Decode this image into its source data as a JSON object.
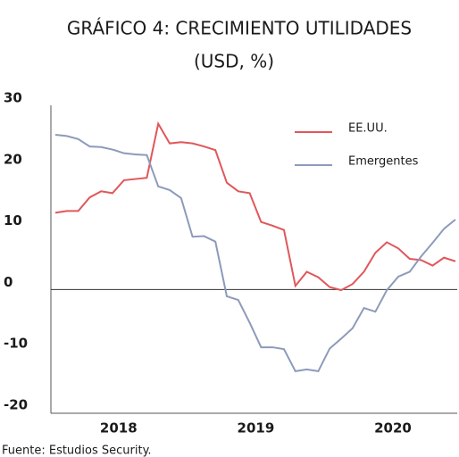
{
  "chart_data": {
    "type": "line",
    "title": "GRÁFICO 4: CRECIMIENTO UTILIDADES",
    "subtitle": "(USD, %)",
    "source": "Fuente: Estudios Security.",
    "categories": [
      null,
      null,
      null,
      null,
      null,
      null,
      "2018",
      null,
      null,
      null,
      null,
      null,
      null,
      null,
      null,
      null,
      null,
      null,
      "2019",
      null,
      null,
      null,
      null,
      null,
      null,
      null,
      null,
      null,
      null,
      null,
      "2020",
      null,
      null,
      null,
      null,
      null
    ],
    "series": [
      {
        "name": "EE.UU.",
        "color": "#e0575a",
        "values": [
          12.5,
          12.8,
          12.8,
          15,
          16,
          15.7,
          17.8,
          18,
          18.2,
          27,
          23.8,
          24,
          23.8,
          23.3,
          22.7,
          17.4,
          16,
          15.7,
          11,
          10.4,
          9.7,
          0.6,
          2.9,
          2,
          0.4,
          -0.1,
          0.9,
          2.9,
          6,
          7.7,
          6.7,
          5,
          4.8,
          3.9,
          5.2,
          4.6
        ]
      },
      {
        "name": "Emergentes",
        "color": "#8d9aba",
        "values": [
          25.2,
          25,
          24.5,
          23.3,
          23.2,
          22.8,
          22.2,
          22,
          21.9,
          16.8,
          16.2,
          14.9,
          8.6,
          8.7,
          7.8,
          -1.1,
          -1.7,
          -5.4,
          -9.4,
          -9.4,
          -9.7,
          -13.3,
          -13,
          -13.3,
          -9.6,
          -8,
          -6.3,
          -3,
          -3.6,
          -0.1,
          2.1,
          2.9,
          5.4,
          7.6,
          9.9,
          11.4
        ]
      }
    ],
    "ylim": [
      -20,
      30
    ],
    "yticks": [
      -20,
      -10,
      0,
      10,
      20,
      30
    ]
  }
}
